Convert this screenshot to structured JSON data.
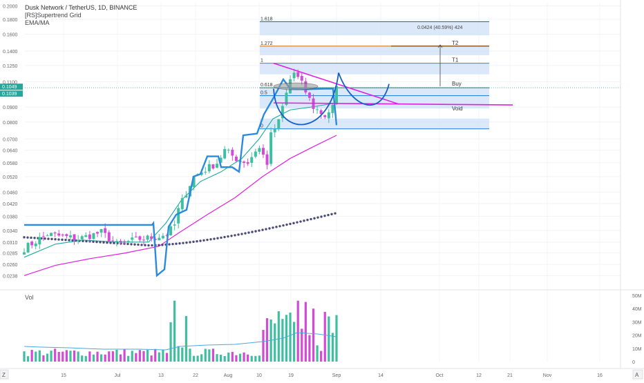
{
  "header": {
    "title": "Dusk Network / TetherUS, 1D, BINANCE",
    "indicator1": "[RS]Supertrend Grid",
    "indicator2": "EMA/MA"
  },
  "volume_label": "Vol",
  "corner_left": "Z",
  "corner_right": "A",
  "price_badges": [
    "0.1049",
    "0.1039"
  ],
  "colors": {
    "up": "#3fbf9f",
    "down": "#d24ad6",
    "supertrend": "#2a8adf",
    "ema_fast": "#1ba9a0",
    "ema_slow": "#e020e0",
    "ma_dots": "#4a4a78",
    "fib_band": "#cfe0f8",
    "fib_line": "#2a8adf",
    "buy_line": "#0a8a6a",
    "target_line": "#d07818",
    "void_line": "#e020e0",
    "pattern": "#1560c8"
  },
  "chart_data": {
    "type": "candlestick",
    "y_scale": "log",
    "ylim": [
      0.0215,
      0.205
    ],
    "y_ticks": [
      "0.2000",
      "0.1800",
      "0.1600",
      "0.1400",
      "0.1250",
      "0.1100",
      "0.0900",
      "0.0800",
      "0.0700",
      "0.0640",
      "0.0580",
      "0.0520",
      "0.0460",
      "0.0420",
      "0.0380",
      "0.0340",
      "0.0310",
      "0.0285",
      "0.0260",
      "0.0238"
    ],
    "x_ticks": [
      "15",
      "Jul",
      "13",
      "22",
      "Aug",
      "10",
      "19",
      "Sep",
      "14",
      "Oct",
      "12",
      "21",
      "Nov",
      "16"
    ],
    "volume_ticks": [
      "50M",
      "40M",
      "30M",
      "20M",
      "10M",
      "0"
    ],
    "volume_ylim": [
      0,
      50
    ],
    "fib_levels": [
      {
        "label": "1.618",
        "value": 0.1765
      },
      {
        "label": "1.272",
        "value": 0.1456
      },
      {
        "label": "1",
        "value": 0.1272
      },
      {
        "label": "0.618",
        "value": 0.1048
      },
      {
        "label": "0.5",
        "value": 0.0985
      },
      {
        "label": "0",
        "value": 0.0758
      }
    ],
    "annotations": {
      "measure": "0.0424 (40.59%) 424",
      "T2": "T2",
      "T1": "T1",
      "Buy": "Buy",
      "Void": "Void"
    }
  }
}
